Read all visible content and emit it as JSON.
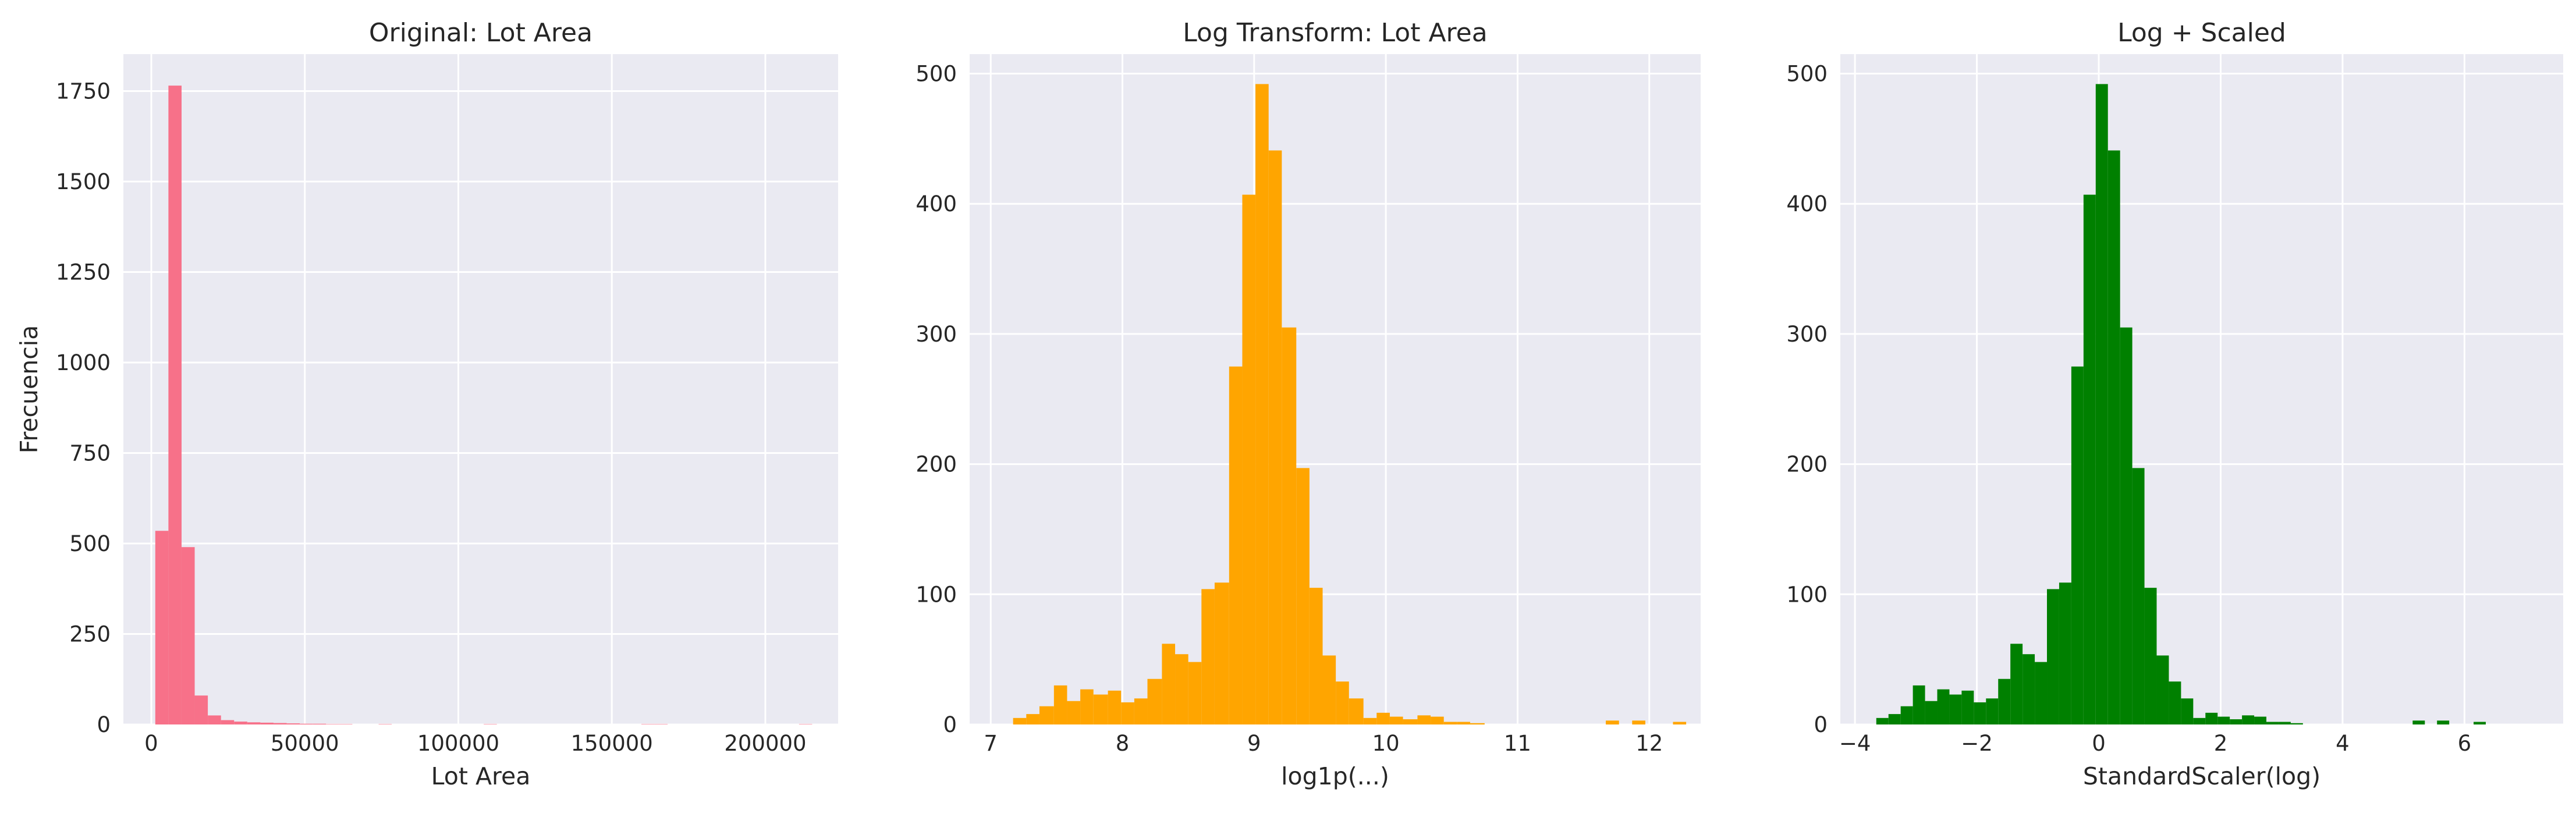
{
  "chart_data": [
    {
      "type": "histogram",
      "title": "Original: Lot Area",
      "x_label": "Lot Area",
      "y_label": "Frecuencia",
      "color": "#f77189",
      "grid": true,
      "bins": [
        1300,
        5579,
        9858,
        14137,
        18416,
        22695,
        26974,
        31253,
        35532,
        39811,
        44090,
        48369,
        52648,
        56927,
        61206,
        65485,
        69764,
        74043,
        78322,
        82601,
        86880,
        91159,
        95438,
        99717,
        103996,
        108275,
        112554,
        116833,
        121112,
        125391,
        129670,
        133949,
        138228,
        142507,
        146786,
        151065,
        155344,
        159623,
        163902,
        168181,
        172460,
        176739,
        181018,
        185297,
        189576,
        193855,
        198134,
        202413,
        206692,
        210971,
        215250
      ],
      "counts": [
        535,
        1765,
        490,
        80,
        25,
        12,
        8,
        6,
        5,
        4,
        3,
        2,
        2,
        1,
        1,
        0,
        0,
        1,
        0,
        0,
        0,
        0,
        0,
        0,
        0,
        1,
        0,
        0,
        0,
        0,
        0,
        0,
        0,
        0,
        0,
        0,
        0,
        1,
        1,
        0,
        0,
        0,
        0,
        0,
        0,
        0,
        0,
        0,
        0,
        1
      ],
      "xlim": [
        -9090,
        223700
      ],
      "xticks": [
        0,
        50000,
        100000,
        150000,
        200000
      ],
      "ylim": [
        0,
        1852
      ],
      "yticks": [
        0,
        250,
        500,
        750,
        1000,
        1250,
        1500,
        1750
      ]
    },
    {
      "type": "histogram",
      "title": "Log Transform: Lot Area",
      "x_label": "log1p(...)",
      "color": "#ffa500",
      "grid": true,
      "bins": [
        7.17,
        7.27,
        7.37,
        7.48,
        7.58,
        7.68,
        7.78,
        7.89,
        7.99,
        8.09,
        8.19,
        8.3,
        8.4,
        8.5,
        8.6,
        8.7,
        8.81,
        8.91,
        9.01,
        9.11,
        9.21,
        9.32,
        9.42,
        9.52,
        9.62,
        9.72,
        9.83,
        9.93,
        10.03,
        10.13,
        10.24,
        10.34,
        10.44,
        10.54,
        10.64,
        10.75,
        10.85,
        10.95,
        11.05,
        11.15,
        11.26,
        11.36,
        11.46,
        11.56,
        11.67,
        11.77,
        11.87,
        11.97,
        12.07,
        12.18,
        12.28
      ],
      "counts": [
        5,
        8,
        14,
        30,
        18,
        27,
        23,
        26,
        17,
        20,
        35,
        62,
        54,
        48,
        104,
        109,
        275,
        407,
        492,
        441,
        305,
        197,
        105,
        53,
        33,
        20,
        5,
        9,
        6,
        4,
        7,
        6,
        2,
        2,
        1,
        0,
        0,
        0,
        0,
        0,
        0,
        0,
        0,
        0,
        3,
        0,
        3,
        0,
        0,
        2
      ],
      "xlim": [
        6.84,
        12.39
      ],
      "xticks": [
        7,
        8,
        9,
        10,
        11,
        12
      ],
      "ylim": [
        0,
        515
      ],
      "yticks": [
        0,
        100,
        200,
        300,
        400,
        500
      ]
    },
    {
      "type": "histogram",
      "title": "Log + Scaled",
      "x_label": "StandardScaler(log)",
      "color": "#008000",
      "grid": true,
      "bins": [
        -3.65,
        -3.45,
        -3.25,
        -3.05,
        -2.85,
        -2.65,
        -2.45,
        -2.25,
        -2.05,
        -1.85,
        -1.65,
        -1.45,
        -1.25,
        -1.05,
        -0.85,
        -0.65,
        -0.45,
        -0.25,
        -0.05,
        0.15,
        0.35,
        0.55,
        0.75,
        0.95,
        1.15,
        1.35,
        1.55,
        1.75,
        1.95,
        2.15,
        2.35,
        2.55,
        2.75,
        2.95,
        3.15,
        3.35,
        3.55,
        3.75,
        3.95,
        4.15,
        4.35,
        4.55,
        4.75,
        4.95,
        5.15,
        5.35,
        5.55,
        5.75,
        5.95,
        6.15,
        6.35
      ],
      "counts": [
        5,
        8,
        14,
        30,
        18,
        27,
        23,
        26,
        17,
        20,
        35,
        62,
        54,
        48,
        104,
        109,
        275,
        407,
        492,
        441,
        305,
        197,
        105,
        53,
        33,
        20,
        5,
        9,
        6,
        4,
        7,
        6,
        2,
        2,
        1,
        0,
        0,
        0,
        0,
        0,
        0,
        0,
        0,
        0,
        3,
        0,
        3,
        0,
        0,
        2
      ],
      "xlim": [
        -4.24,
        7.62
      ],
      "xticks": [
        {
          "value": -4,
          "label": "−4"
        },
        {
          "value": -2,
          "label": "−2"
        },
        0,
        2,
        4,
        6
      ],
      "ylim": [
        0,
        515
      ],
      "yticks": [
        0,
        100,
        200,
        300,
        400,
        500
      ]
    }
  ]
}
